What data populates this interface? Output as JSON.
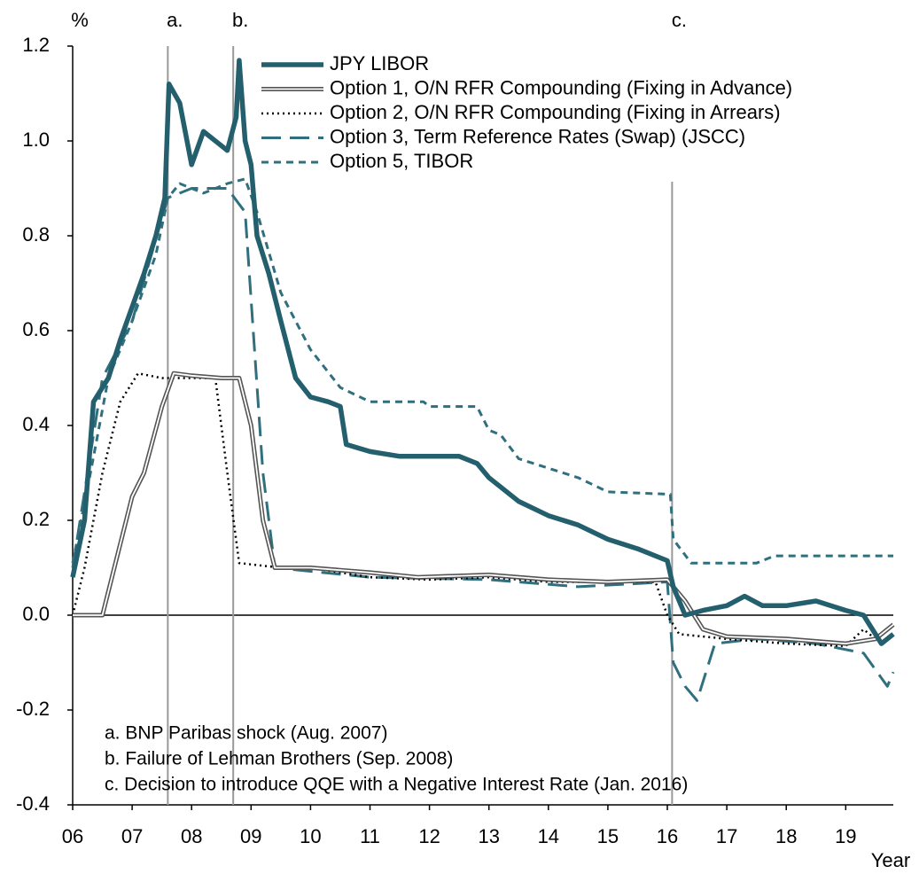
{
  "chart_data": {
    "type": "line",
    "y_unit_label": "%",
    "x_axis_label": "Year",
    "xlim": [
      2006,
      2019.8
    ],
    "ylim": [
      -0.4,
      1.2
    ],
    "xticks": [
      {
        "value": 2006,
        "label": "06"
      },
      {
        "value": 2007,
        "label": "07"
      },
      {
        "value": 2008,
        "label": "08"
      },
      {
        "value": 2009,
        "label": "09"
      },
      {
        "value": 2010,
        "label": "10"
      },
      {
        "value": 2011,
        "label": "11"
      },
      {
        "value": 2012,
        "label": "12"
      },
      {
        "value": 2013,
        "label": "13"
      },
      {
        "value": 2014,
        "label": "14"
      },
      {
        "value": 2015,
        "label": "15"
      },
      {
        "value": 2016,
        "label": "16"
      },
      {
        "value": 2017,
        "label": "17"
      },
      {
        "value": 2018,
        "label": "18"
      },
      {
        "value": 2019,
        "label": "19"
      }
    ],
    "yticks": [
      1.2,
      {
        "value": 1.0,
        "label": "1.0"
      },
      0.8,
      0.6,
      0.4,
      0.2,
      {
        "value": 0,
        "label": "0.0"
      },
      -0.2,
      -0.4
    ],
    "events": [
      {
        "label": "a.",
        "x": 2007.6
      },
      {
        "label": "b.",
        "x": 2008.7
      },
      {
        "label": "c.",
        "x": 2016.08
      }
    ],
    "notes": [
      "a. BNP Paribas shock (Aug. 2007)",
      "b. Failure of Lehman Brothers (Sep. 2008)",
      "c. Decision to introduce QQE with a Negative Interest Rate (Jan. 2016)"
    ],
    "series": [
      {
        "name": "JPY LIBOR",
        "color": "#245f6e",
        "style": "solid",
        "x": [
          2006.0,
          2006.2,
          2006.35,
          2006.6,
          2006.8,
          2007.0,
          2007.2,
          2007.4,
          2007.55,
          2007.62,
          2007.8,
          2008.0,
          2008.2,
          2008.4,
          2008.6,
          2008.75,
          2008.8,
          2008.9,
          2009.0,
          2009.1,
          2009.3,
          2009.5,
          2009.75,
          2010.0,
          2010.3,
          2010.5,
          2010.6,
          2011.0,
          2011.5,
          2012.0,
          2012.5,
          2012.8,
          2013.0,
          2013.5,
          2014.0,
          2014.5,
          2015.0,
          2015.5,
          2016.0,
          2016.1,
          2016.3,
          2016.6,
          2017.0,
          2017.3,
          2017.6,
          2018.0,
          2018.5,
          2019.0,
          2019.3,
          2019.6,
          2019.8
        ],
        "values": [
          0.08,
          0.2,
          0.45,
          0.5,
          0.58,
          0.65,
          0.72,
          0.8,
          0.88,
          1.12,
          1.08,
          0.95,
          1.02,
          1.0,
          0.98,
          1.05,
          1.17,
          1.0,
          0.95,
          0.8,
          0.72,
          0.62,
          0.5,
          0.46,
          0.45,
          0.44,
          0.36,
          0.345,
          0.335,
          0.335,
          0.335,
          0.32,
          0.29,
          0.24,
          0.21,
          0.19,
          0.16,
          0.14,
          0.115,
          0.06,
          0.0,
          0.01,
          0.02,
          0.04,
          0.02,
          0.02,
          0.03,
          0.01,
          0.0,
          -0.06,
          -0.04
        ]
      },
      {
        "name": "Option 1, O/N RFR Compounding (Fixing in Advance)",
        "color": "#555555",
        "style": "double",
        "x": [
          2006.0,
          2006.5,
          2006.7,
          2007.0,
          2007.2,
          2007.5,
          2007.7,
          2008.0,
          2008.5,
          2008.8,
          2009.0,
          2009.2,
          2009.4,
          2010.0,
          2011.0,
          2011.8,
          2013.0,
          2014.0,
          2015.0,
          2016.0,
          2016.3,
          2016.6,
          2017.0,
          2018.0,
          2019.0,
          2019.5,
          2019.8
        ],
        "values": [
          0.0,
          0.0,
          0.1,
          0.25,
          0.3,
          0.44,
          0.51,
          0.505,
          0.5,
          0.5,
          0.4,
          0.2,
          0.1,
          0.1,
          0.09,
          0.08,
          0.085,
          0.075,
          0.07,
          0.075,
          0.03,
          -0.03,
          -0.045,
          -0.05,
          -0.06,
          -0.05,
          -0.02
        ]
      },
      {
        "name": "Option 2, O/N RFR Compounding (Fixing in Arrears)",
        "color": "#000000",
        "style": "dotted",
        "x": [
          2006.0,
          2006.2,
          2006.5,
          2006.8,
          2007.1,
          2007.5,
          2008.0,
          2008.4,
          2008.6,
          2008.8,
          2009.5,
          2010.0,
          2011.0,
          2012.0,
          2013.0,
          2014.0,
          2015.0,
          2015.8,
          2016.0,
          2016.2,
          2017.0,
          2018.0,
          2019.0,
          2019.3,
          2019.5,
          2019.8
        ],
        "values": [
          0.0,
          0.1,
          0.3,
          0.45,
          0.51,
          0.5,
          0.5,
          0.5,
          0.3,
          0.11,
          0.1,
          0.1,
          0.08,
          0.075,
          0.08,
          0.07,
          0.07,
          0.07,
          0.0,
          -0.04,
          -0.05,
          -0.06,
          -0.065,
          -0.03,
          -0.05,
          -0.02
        ]
      },
      {
        "name": "Option 3, Term Reference Rates (Swap) (JSCC)",
        "color": "#2f6f7e",
        "style": "long-dash",
        "x": [
          2006.0,
          2006.5,
          2007.0,
          2007.6,
          2008.0,
          2008.6,
          2008.9,
          2009.2,
          2009.4,
          2011.0,
          2013.0,
          2014.5,
          2016.0,
          2016.1,
          2016.3,
          2016.5,
          2016.8,
          2017.5,
          2018.5,
          2019.3,
          2019.7,
          2019.8
        ],
        "values": [
          0.1,
          0.5,
          0.62,
          0.88,
          0.9,
          0.9,
          0.85,
          0.3,
          0.1,
          0.08,
          0.075,
          0.06,
          0.07,
          -0.1,
          -0.15,
          -0.18,
          -0.06,
          -0.05,
          -0.06,
          -0.08,
          -0.15,
          -0.12
        ]
      },
      {
        "name": "Option 5, TIBOR",
        "color": "#2f6f7e",
        "style": "dash",
        "x": [
          2006.0,
          2006.3,
          2006.6,
          2007.0,
          2007.4,
          2007.6,
          2007.8,
          2008.2,
          2008.6,
          2008.9,
          2009.1,
          2009.5,
          2010.0,
          2010.5,
          2011.0,
          2011.9,
          2012.0,
          2012.8,
          2013.0,
          2013.2,
          2013.5,
          2014.0,
          2014.5,
          2015.0,
          2016.05,
          2016.1,
          2016.4,
          2017.5,
          2017.8,
          2019.8
        ],
        "values": [
          0.11,
          0.3,
          0.5,
          0.62,
          0.76,
          0.88,
          0.91,
          0.89,
          0.91,
          0.92,
          0.85,
          0.68,
          0.56,
          0.48,
          0.45,
          0.45,
          0.44,
          0.44,
          0.39,
          0.38,
          0.33,
          0.31,
          0.29,
          0.26,
          0.255,
          0.16,
          0.11,
          0.11,
          0.125,
          0.125
        ]
      }
    ]
  }
}
